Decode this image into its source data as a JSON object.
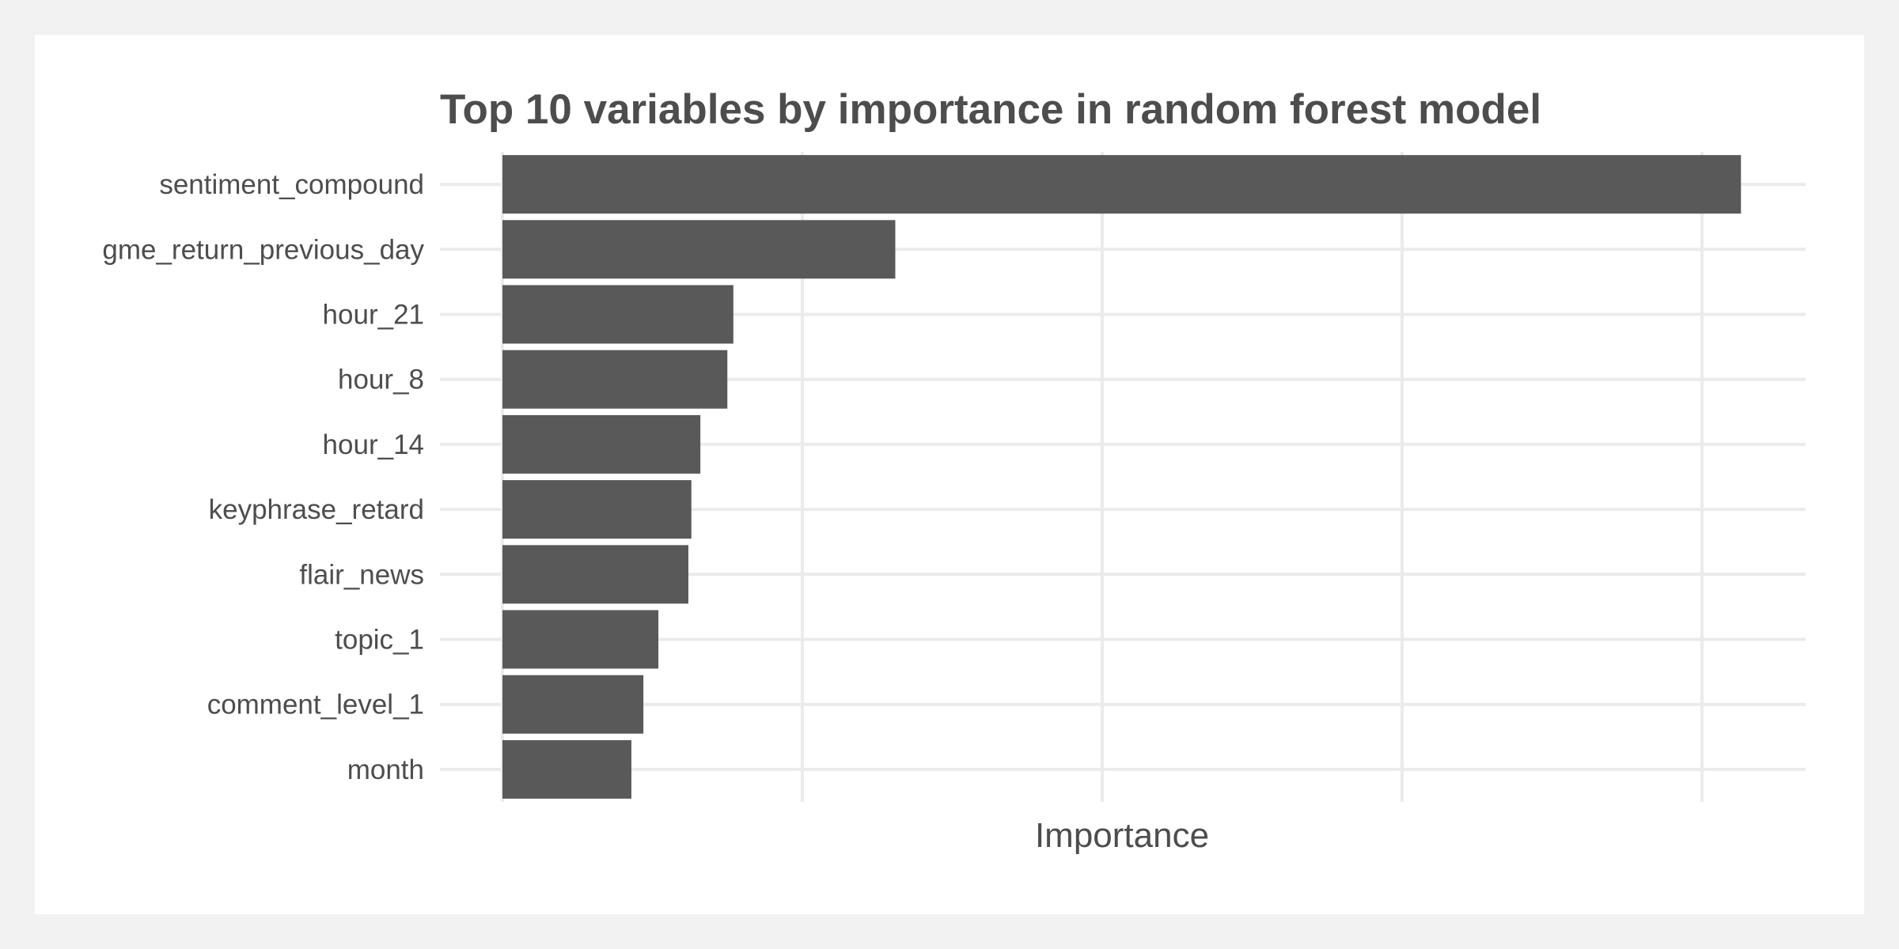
{
  "chart_data": {
    "type": "bar",
    "orientation": "horizontal",
    "title": "Top 10 variables by importance in random forest model",
    "xlabel": "Importance",
    "ylabel": "",
    "categories": [
      "sentiment_compound",
      "gme_return_previous_day",
      "hour_21",
      "hour_8",
      "hour_14",
      "keyphrase_retard",
      "flair_news",
      "topic_1",
      "comment_level_1",
      "month"
    ],
    "values": [
      4.13,
      1.31,
      0.77,
      0.75,
      0.66,
      0.63,
      0.62,
      0.52,
      0.47,
      0.43
    ],
    "xlim": [
      0,
      4.34
    ],
    "x_gridlines": [
      0,
      1,
      2,
      3,
      4
    ],
    "x_tick_labels_shown": false,
    "grid": true,
    "bar_color": "#595959",
    "grid_color": "#ebebeb",
    "text_color": "#4d4d4d",
    "background_color": "#ffffff",
    "page_background": "#f2f2f2"
  }
}
